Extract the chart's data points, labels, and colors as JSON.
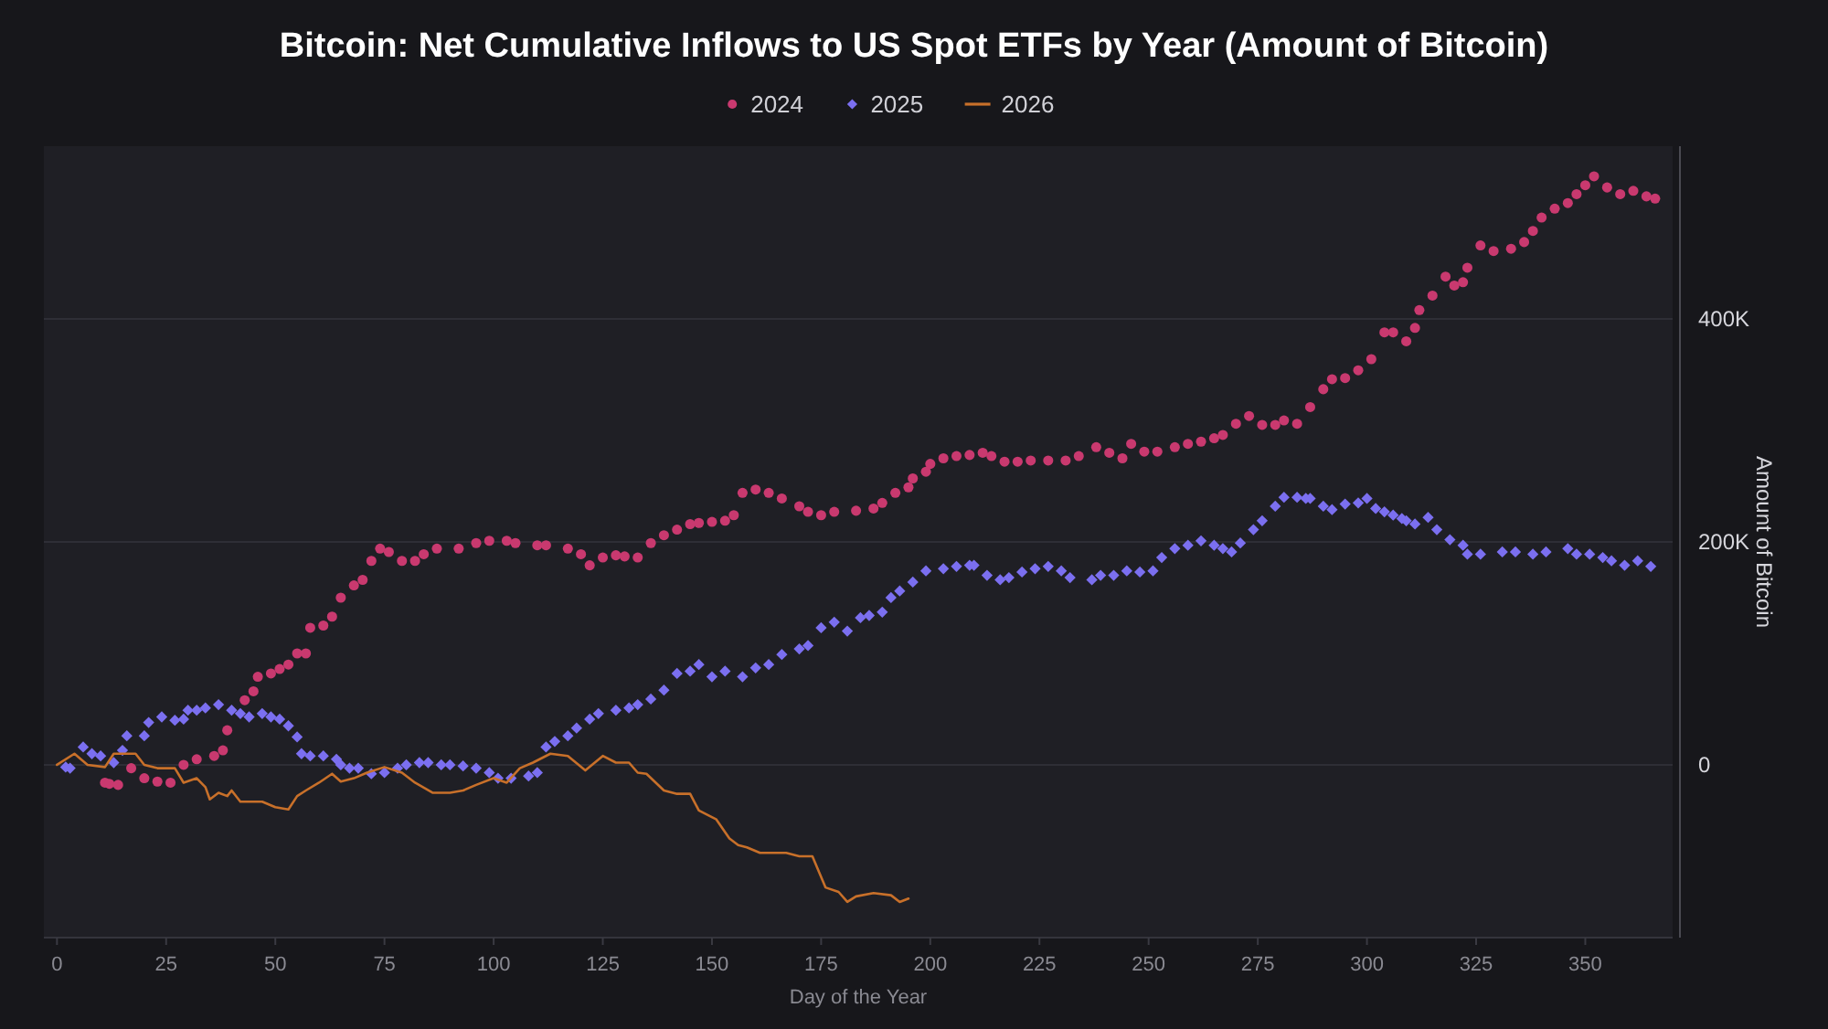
{
  "chart_data": {
    "type": "scatter",
    "title": "Bitcoin: Net Cumulative Inflows to US Spot ETFs by Year (Amount of Bitcoin)",
    "xlabel": "Day of the Year",
    "ylabel": "Amount of Bitcoin",
    "xlim": [
      -3,
      370
    ],
    "xticks": [
      0,
      25,
      50,
      75,
      100,
      125,
      150,
      175,
      200,
      225,
      250,
      275,
      300,
      325,
      350
    ],
    "ylim": [
      -155000,
      555000
    ],
    "yticks": [
      0,
      {
        "value": 200000,
        "label": "200K"
      },
      {
        "value": 400000,
        "label": "400K"
      }
    ],
    "grid": "y",
    "legend": "top",
    "series": [
      {
        "name": "2024",
        "marker": "circle",
        "color": "#c9396f",
        "x": [
          11,
          12,
          14,
          17,
          20,
          23,
          26,
          29,
          32,
          36,
          38,
          39,
          43,
          45,
          46,
          49,
          51,
          53,
          55,
          57,
          58,
          61,
          63,
          65,
          68,
          70,
          72,
          74,
          76,
          79,
          82,
          84,
          87,
          92,
          96,
          99,
          103,
          105,
          110,
          112,
          117,
          120,
          122,
          125,
          128,
          130,
          133,
          136,
          139,
          142,
          145,
          147,
          150,
          153,
          155,
          157,
          160,
          163,
          166,
          170,
          172,
          175,
          178,
          183,
          187,
          189,
          192,
          195,
          196,
          199,
          200,
          203,
          206,
          209,
          212,
          214,
          217,
          220,
          223,
          227,
          231,
          234,
          238,
          241,
          244,
          246,
          249,
          252,
          256,
          259,
          262,
          265,
          267,
          270,
          273,
          276,
          279,
          281,
          284,
          287,
          290,
          292,
          295,
          298,
          301,
          304,
          306,
          309,
          311,
          312,
          315,
          318,
          320,
          322,
          323,
          326,
          329,
          333,
          336,
          338,
          340,
          343,
          346,
          348,
          350,
          352,
          355,
          358,
          361,
          364,
          366
        ],
        "values": [
          -16000,
          -17000,
          -18000,
          -3000,
          -12000,
          -15000,
          -16000,
          0,
          5000,
          8000,
          13000,
          31000,
          58000,
          66000,
          79000,
          82000,
          86000,
          90000,
          100000,
          100000,
          123000,
          125000,
          133000,
          150000,
          161000,
          166000,
          183000,
          194000,
          191000,
          183000,
          183000,
          189000,
          194000,
          194000,
          199000,
          201000,
          201000,
          199000,
          197000,
          197000,
          194000,
          189000,
          179000,
          186000,
          188000,
          187000,
          186000,
          199000,
          206000,
          211000,
          216000,
          217000,
          218000,
          219000,
          224000,
          244000,
          247000,
          244000,
          239000,
          232000,
          227000,
          224000,
          227000,
          228000,
          230000,
          235000,
          244000,
          249000,
          257000,
          263000,
          270000,
          275000,
          277000,
          278000,
          280000,
          277000,
          272000,
          272000,
          273000,
          273000,
          273000,
          277000,
          285000,
          280000,
          275000,
          288000,
          281000,
          281000,
          285000,
          288000,
          290000,
          293000,
          296000,
          306000,
          313000,
          305000,
          305000,
          309000,
          306000,
          321000,
          337000,
          346000,
          347000,
          354000,
          364000,
          388000,
          388000,
          380000,
          392000,
          408000,
          421000,
          438000,
          430000,
          433000,
          446000,
          466000,
          461000,
          463000,
          469000,
          479000,
          491000,
          499000,
          504000,
          512000,
          520000,
          528000,
          518000,
          512000,
          515000,
          510000,
          508000
        ]
      },
      {
        "name": "2025",
        "marker": "diamond",
        "color": "#7b6ff0",
        "x": [
          2,
          3,
          6,
          8,
          10,
          13,
          15,
          16,
          20,
          21,
          24,
          27,
          29,
          30,
          32,
          34,
          37,
          40,
          42,
          44,
          47,
          49,
          51,
          53,
          55,
          56,
          58,
          61,
          64,
          65,
          67,
          69,
          72,
          75,
          78,
          80,
          83,
          85,
          88,
          90,
          93,
          96,
          99,
          101,
          104,
          108,
          110,
          112,
          114,
          117,
          119,
          122,
          124,
          128,
          131,
          133,
          136,
          139,
          142,
          145,
          147,
          150,
          153,
          157,
          160,
          163,
          166,
          170,
          172,
          175,
          178,
          181,
          184,
          186,
          189,
          191,
          193,
          196,
          199,
          203,
          206,
          209,
          210,
          213,
          216,
          218,
          221,
          224,
          227,
          230,
          232,
          237,
          239,
          242,
          245,
          248,
          251,
          253,
          256,
          259,
          262,
          265,
          267,
          269,
          271,
          274,
          276,
          279,
          281,
          284,
          286,
          287,
          290,
          292,
          295,
          298,
          300,
          302,
          304,
          306,
          308,
          309,
          311,
          314,
          316,
          319,
          322,
          323,
          326,
          331,
          334,
          338,
          341,
          346,
          348,
          351,
          354,
          356,
          359,
          362,
          365
        ],
        "values": [
          -2000,
          -3000,
          16000,
          10000,
          8000,
          2000,
          13000,
          26000,
          26000,
          38000,
          43000,
          40000,
          41000,
          49000,
          49000,
          51000,
          54000,
          49000,
          46000,
          43000,
          46000,
          43000,
          41000,
          35000,
          25000,
          10000,
          8000,
          8000,
          5000,
          0,
          -3000,
          -3000,
          -8000,
          -7000,
          -3000,
          0,
          2000,
          2000,
          0,
          0,
          -1000,
          -3000,
          -7000,
          -12000,
          -12000,
          -10000,
          -7000,
          16000,
          21000,
          26000,
          33000,
          41000,
          46000,
          49000,
          51000,
          54000,
          59000,
          67000,
          82000,
          84000,
          90000,
          79000,
          84000,
          79000,
          87000,
          90000,
          99000,
          104000,
          107000,
          123000,
          128000,
          120000,
          132000,
          134000,
          137000,
          150000,
          156000,
          164000,
          174000,
          176000,
          178000,
          179000,
          179000,
          170000,
          166000,
          168000,
          173000,
          176000,
          178000,
          174000,
          168000,
          166000,
          170000,
          170000,
          174000,
          173000,
          174000,
          186000,
          194000,
          197000,
          201000,
          197000,
          194000,
          191000,
          199000,
          211000,
          219000,
          232000,
          240000,
          240000,
          239000,
          239000,
          232000,
          229000,
          234000,
          235000,
          239000,
          230000,
          227000,
          224000,
          221000,
          219000,
          216000,
          222000,
          211000,
          202000,
          197000,
          189000,
          189000,
          191000,
          191000,
          189000,
          191000,
          194000,
          189000,
          189000,
          186000,
          183000,
          179000,
          183000,
          178000
        ]
      },
      {
        "name": "2026",
        "type": "line",
        "color": "#c8702a",
        "x": [
          0,
          4,
          7,
          11,
          13,
          16,
          18,
          20,
          23,
          27,
          29,
          32,
          34,
          35,
          37,
          39,
          40,
          42,
          47,
          50,
          53,
          55,
          57,
          60,
          63,
          65,
          68,
          71,
          75,
          79,
          82,
          86,
          90,
          93,
          96,
          100,
          103,
          106,
          109,
          113,
          117,
          121,
          125,
          128,
          131,
          133,
          135,
          139,
          142,
          145,
          147,
          151,
          154,
          156,
          158,
          161,
          167,
          170,
          173,
          176,
          179,
          181,
          183,
          187,
          191,
          193,
          195
        ],
        "values": [
          0,
          10000,
          0,
          -2000,
          10000,
          10000,
          10000,
          0,
          -3000,
          -3000,
          -16000,
          -12000,
          -20000,
          -31000,
          -25000,
          -28000,
          -23000,
          -33000,
          -33000,
          -38000,
          -40000,
          -28000,
          -23000,
          -16000,
          -8000,
          -15000,
          -12000,
          -7000,
          -2000,
          -7000,
          -16000,
          -25000,
          -25000,
          -23000,
          -18000,
          -12000,
          -16000,
          -3000,
          2000,
          10000,
          8000,
          -5000,
          8000,
          2000,
          2000,
          -7000,
          -8000,
          -23000,
          -26000,
          -26000,
          -41000,
          -49000,
          -66000,
          -72000,
          -74000,
          -79000,
          -79000,
          -82000,
          -82000,
          -110000,
          -114000,
          -123000,
          -118000,
          -115000,
          -117000,
          -123000,
          -120000
        ]
      }
    ]
  }
}
